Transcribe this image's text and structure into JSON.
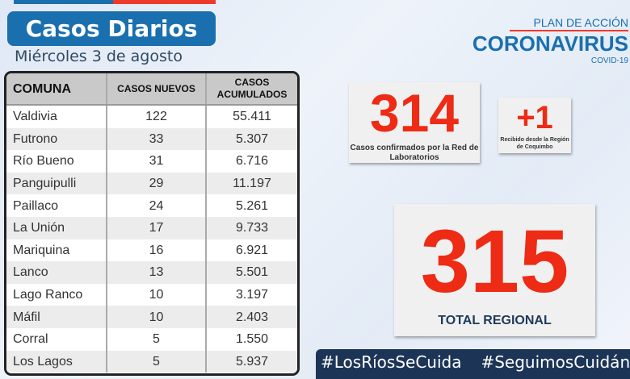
{
  "title": "Casos Diarios",
  "date": "Miércoles 3 de agosto",
  "colors": {
    "blue": "#1a6fae",
    "red": "#ee2b15",
    "navy": "#1c3557"
  },
  "logo": {
    "plan": "PLAN DE ACCIÓN",
    "name": "CORONAVIRUS",
    "sub": "COVID-19"
  },
  "table": {
    "headers": [
      "COMUNA",
      "CASOS NUEVOS",
      "CASOS ACUMULADOS"
    ],
    "rows": [
      [
        "Valdivia",
        "122",
        "55.411"
      ],
      [
        "Futrono",
        "33",
        "5.307"
      ],
      [
        "Río Bueno",
        "31",
        "6.716"
      ],
      [
        "Panguipulli",
        "29",
        "11.197"
      ],
      [
        "Paillaco",
        "24",
        "5.261"
      ],
      [
        "La Unión",
        "17",
        "9.733"
      ],
      [
        "Mariquina",
        "16",
        "6.921"
      ],
      [
        "Lanco",
        "13",
        "5.501"
      ],
      [
        "Lago Ranco",
        "10",
        "3.197"
      ],
      [
        "Máfil",
        "10",
        "2.403"
      ],
      [
        "Corral",
        "5",
        "1.550"
      ],
      [
        "Los Lagos",
        "5",
        "5.937"
      ]
    ]
  },
  "lab": {
    "value": "314",
    "label": "Casos confirmados por la Red de Laboratorios"
  },
  "extra": {
    "value": "+1",
    "label": "Recibido desde la Región de Coquimbo"
  },
  "total": {
    "value": "315",
    "label": "TOTAL REGIONAL"
  },
  "hashtags": [
    "#LosRíosSeCuida",
    "#SeguimosCuidándonos"
  ]
}
